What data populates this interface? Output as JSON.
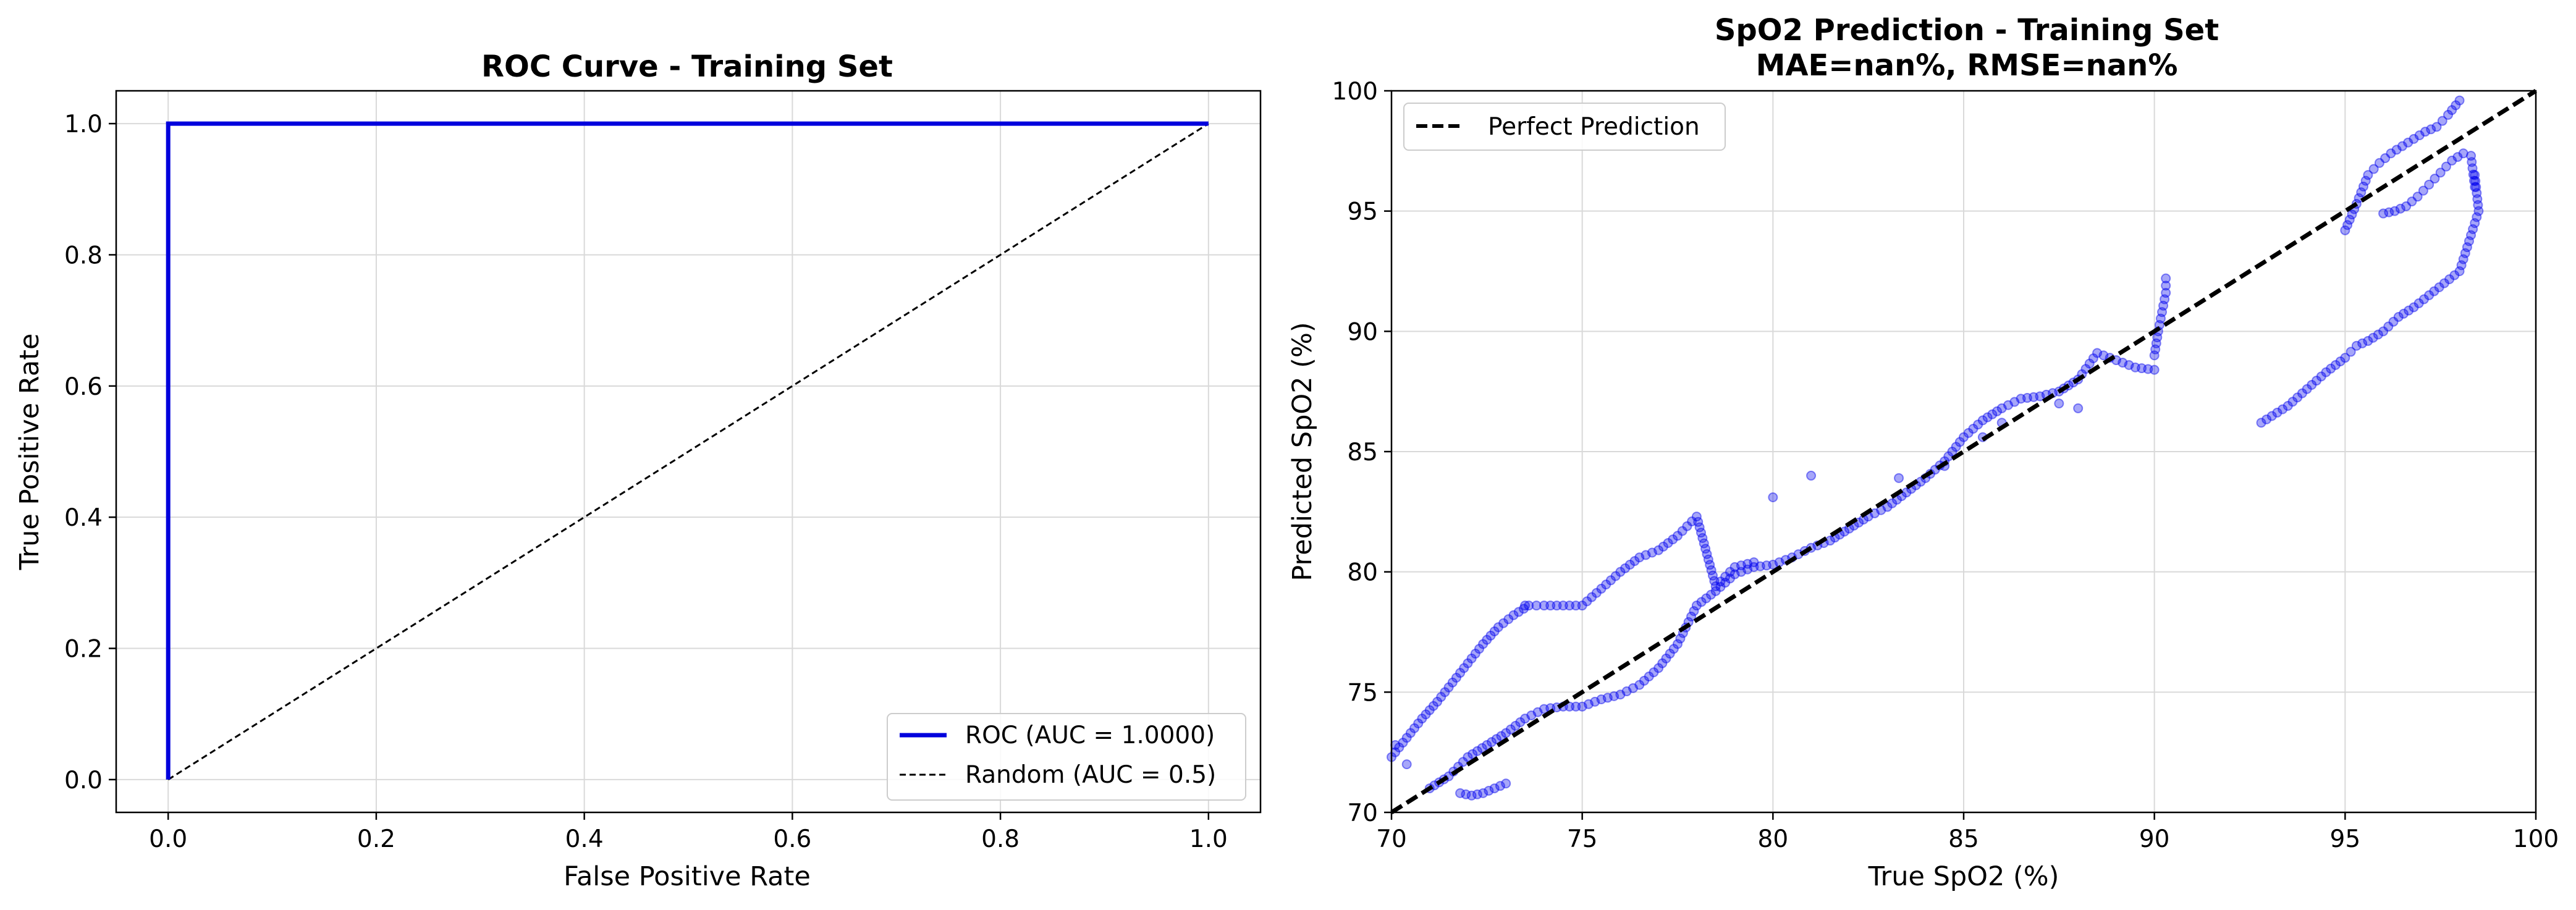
{
  "chart_data": [
    {
      "type": "line",
      "title": "ROC Curve - Training Set",
      "xlabel": "False Positive Rate",
      "ylabel": "True Positive Rate",
      "xlim": [
        -0.05,
        1.05
      ],
      "ylim": [
        -0.05,
        1.05
      ],
      "xticks": [
        "0.0",
        "0.2",
        "0.4",
        "0.6",
        "0.8",
        "1.0"
      ],
      "yticks": [
        "0.0",
        "0.2",
        "0.4",
        "0.6",
        "0.8",
        "1.0"
      ],
      "grid": true,
      "legend_position": "lower-right",
      "series": [
        {
          "name": "ROC (AUC = 1.0000)",
          "color": "#0000dd",
          "style": "solid",
          "x": [
            0,
            0,
            0.005,
            1
          ],
          "y": [
            0,
            1,
            1,
            1
          ]
        },
        {
          "name": "Random (AUC = 0.5)",
          "color": "#000000",
          "style": "dashed",
          "x": [
            0,
            1
          ],
          "y": [
            0,
            1
          ]
        }
      ]
    },
    {
      "type": "scatter",
      "title": "SpO2 Prediction - Training Set",
      "subtitle": "MAE=nan%, RMSE=nan%",
      "xlabel": "True SpO2 (%)",
      "ylabel": "Predicted SpO2 (%)",
      "xlim": [
        70,
        100
      ],
      "ylim": [
        70,
        100
      ],
      "xticks": [
        "70",
        "75",
        "80",
        "85",
        "90",
        "95",
        "100"
      ],
      "yticks": [
        "70",
        "75",
        "80",
        "85",
        "90",
        "95",
        "100"
      ],
      "grid": true,
      "legend_position": "upper-left",
      "point_color": "#0000ee",
      "reference_line": {
        "name": "Perfect Prediction",
        "color": "#000000",
        "style": "dashed",
        "x": [
          70,
          100
        ],
        "y": [
          70,
          100
        ]
      },
      "segments": [
        {
          "x": [
            71.0,
            71.5,
            72.0,
            72.5,
            73.0,
            73.5,
            74.0,
            74.5,
            75.0,
            75.5,
            76.0,
            76.5,
            77.0,
            77.5,
            78.0,
            78.5,
            79.0,
            79.5,
            80.0,
            80.5,
            81.0,
            81.5,
            82.0,
            82.5,
            83.0,
            83.5,
            84.0,
            84.5,
            85.0,
            85.5,
            86.0,
            86.5,
            87.0,
            87.5,
            88.0,
            88.5,
            89.0,
            89.5,
            90.0
          ],
          "y": [
            71.0,
            71.5,
            72.3,
            72.8,
            73.3,
            73.9,
            74.3,
            74.4,
            74.4,
            74.7,
            74.9,
            75.3,
            76.0,
            77.0,
            78.6,
            79.2,
            79.9,
            80.2,
            80.3,
            80.6,
            81.0,
            81.3,
            81.8,
            82.3,
            82.7,
            83.3,
            83.9,
            84.6,
            85.6,
            86.3,
            86.8,
            87.2,
            87.3,
            87.5,
            88.0,
            89.1,
            88.8,
            88.5,
            88.4
          ]
        },
        {
          "x": [
            70.0,
            70.4,
            70.8,
            71.2,
            71.6,
            72.0,
            72.4,
            72.8,
            73.2,
            73.6,
            74.0,
            74.5,
            75.0,
            75.5,
            76.0,
            76.5,
            77.0,
            77.5,
            78.0,
            78.5,
            79.0,
            79.5
          ],
          "y": [
            72.3,
            73.1,
            73.9,
            74.6,
            75.4,
            76.2,
            77.0,
            77.7,
            78.2,
            78.6,
            78.6,
            78.6,
            78.6,
            79.3,
            80.0,
            80.6,
            80.9,
            81.5,
            82.3,
            79.4,
            80.2,
            80.4
          ]
        },
        {
          "x": [
            90.0,
            90.1,
            90.2,
            90.3,
            90.3
          ],
          "y": [
            89.0,
            90.0,
            90.8,
            91.6,
            92.2
          ]
        },
        {
          "x": [
            95.0,
            95.3,
            95.6,
            95.9,
            96.2,
            96.5,
            96.8,
            97.1,
            97.4,
            97.7,
            98.0
          ],
          "y": [
            94.2,
            95.3,
            96.5,
            97.0,
            97.4,
            97.7,
            98.0,
            98.3,
            98.5,
            99.0,
            99.6
          ]
        },
        {
          "x": [
            96.0,
            96.3,
            96.6,
            96.9,
            97.2,
            97.5,
            97.8,
            98.1,
            98.3,
            98.4
          ],
          "y": [
            94.9,
            95.0,
            95.2,
            95.6,
            96.1,
            96.6,
            97.1,
            97.4,
            97.3,
            96.0
          ]
        },
        {
          "x": [
            92.8,
            93.5,
            94.0,
            94.5,
            95.0,
            95.3,
            95.6,
            96.0,
            96.4,
            96.8,
            97.2,
            97.6,
            98.0,
            98.3,
            98.5,
            98.4
          ],
          "y": [
            86.2,
            86.9,
            87.6,
            88.3,
            88.9,
            89.4,
            89.6,
            90.0,
            90.6,
            91.0,
            91.5,
            92.0,
            92.5,
            94.0,
            95.0,
            96.5
          ]
        },
        {
          "x": [
            71.8,
            72.1,
            72.4,
            72.7,
            73.0
          ],
          "y": [
            70.8,
            70.7,
            70.8,
            71.0,
            71.2
          ]
        }
      ],
      "outliers": {
        "x": [
          70.1,
          70.4,
          73.5,
          80.0,
          81.0,
          83.3,
          85.5,
          86.0,
          87.5,
          88.0,
          84.5
        ],
        "y": [
          72.8,
          72.0,
          78.6,
          83.1,
          84.0,
          83.9,
          85.6,
          86.2,
          87.0,
          86.8,
          84.4
        ]
      }
    }
  ]
}
